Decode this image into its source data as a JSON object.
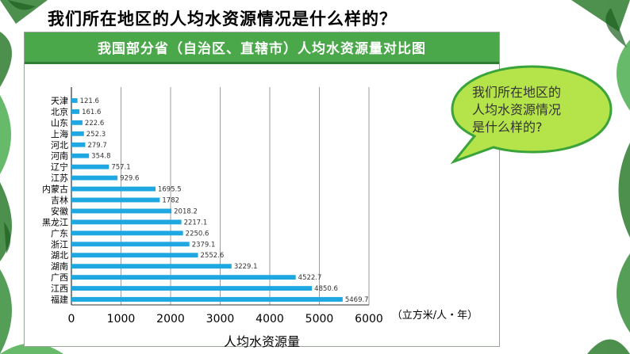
{
  "slide": {
    "title": "我们所在地区的人均水资源情况是什么样的？",
    "bubble_lines": [
      "我们所在地区的",
      "人均水资源情况",
      "是什么样的?"
    ]
  },
  "colors": {
    "header_green": "#4aa84a",
    "bar_blue": "#1ea7e0",
    "bubble_fill": "#b5e34a",
    "bubble_stroke": "#3aa33a"
  },
  "chart_data": {
    "type": "bar",
    "orientation": "horizontal",
    "title": "我国部分省（自治区、直辖市）人均水资源量对比图",
    "categories": [
      "天津",
      "北京",
      "山东",
      "上海",
      "河北",
      "河南",
      "辽宁",
      "江苏",
      "内蒙古",
      "吉林",
      "安徽",
      "黑龙江",
      "广东",
      "浙江",
      "湖北",
      "湖南",
      "广西",
      "江西",
      "福建"
    ],
    "values": [
      121.6,
      161.6,
      222.6,
      252.3,
      279.7,
      354.8,
      757.1,
      929.6,
      1695.5,
      1782,
      2018.2,
      2217.1,
      2250.6,
      2379.1,
      2552.6,
      3229.1,
      4522.7,
      4850.6,
      5469.7
    ],
    "value_labels": [
      "121.6",
      "161.6",
      "222.6",
      "252.3",
      "279.7",
      "354.8",
      "757.1",
      "929.6",
      "1695.5",
      "1782",
      "2018.2",
      "2217.1",
      "2250.6",
      "2379.1",
      "2552.6",
      "3229.1",
      "4522.7",
      "4850.6",
      "5469.7"
    ],
    "xlabel": "人均水资源量",
    "unit": "（立方米/人・年）",
    "xlim": [
      0,
      6000
    ],
    "xticks": [
      0,
      1000,
      2000,
      3000,
      4000,
      5000,
      6000
    ],
    "grid": true
  }
}
